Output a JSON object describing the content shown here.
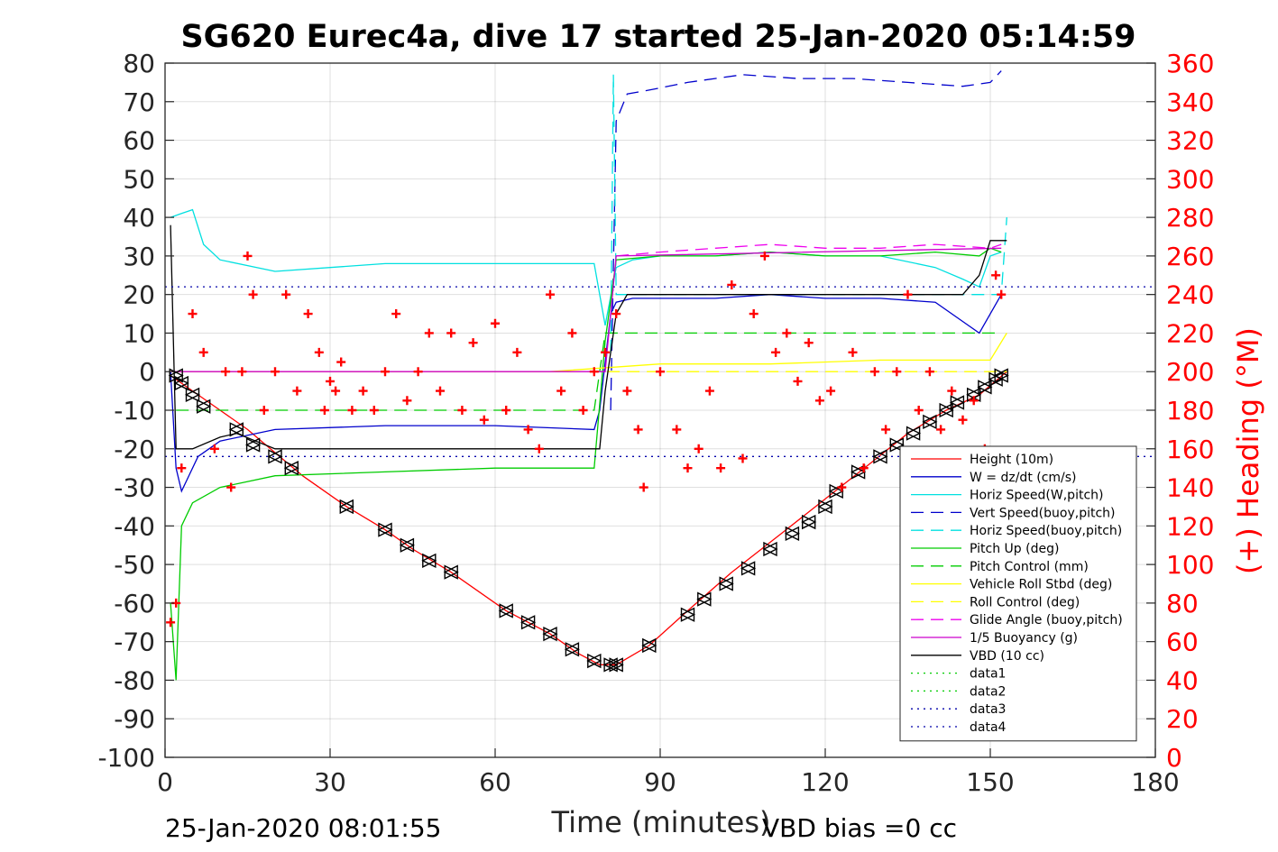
{
  "chart_data": {
    "type": "line",
    "title": "SG620 Eurec4a, dive 17 started 25-Jan-2020 05:14:59",
    "xlabel": "Time (minutes)",
    "ylabel": "",
    "ylabel_right": "(+) Heading (°M)",
    "xlim": [
      0,
      180
    ],
    "ylim": [
      -100,
      80
    ],
    "ylim_right": [
      0,
      360
    ],
    "xticks": [
      "0",
      "30",
      "60",
      "90",
      "120",
      "150",
      "180"
    ],
    "yticks": [
      "80",
      "70",
      "60",
      "50",
      "40",
      "30",
      "20",
      "10",
      "0",
      "-10",
      "-20",
      "-30",
      "-40",
      "-50",
      "-60",
      "-70",
      "-80",
      "-90",
      "-100"
    ],
    "yticks_right": [
      "360",
      "340",
      "320",
      "300",
      "280",
      "260",
      "240",
      "220",
      "200",
      "180",
      "160",
      "140",
      "120",
      "100",
      "80",
      "60",
      "40",
      "20",
      "0"
    ],
    "footer_left": "25-Jan-2020 08:01:55",
    "footer_right": "VBD bias =0 cc",
    "grid": true,
    "legend_position": "lower-right",
    "series": [
      {
        "name": "Height (10m)",
        "color": "#ff0000",
        "dash": "solid",
        "x": [
          1,
          3,
          6,
          10,
          15,
          20,
          25,
          33,
          40,
          45,
          52,
          62,
          70,
          75,
          79,
          82,
          88,
          95,
          103,
          112,
          120,
          128,
          135,
          142,
          148,
          153
        ],
        "y": [
          -1,
          -3,
          -6,
          -10,
          -15,
          -21,
          -27,
          -35,
          -41,
          -46,
          -52,
          -62,
          -68,
          -73,
          -76,
          -76,
          -71,
          -62,
          -52,
          -42,
          -33,
          -24,
          -16,
          -10,
          -6,
          0
        ]
      },
      {
        "name": "W = dz/dt (cm/s)",
        "color": "#0000cc",
        "dash": "solid",
        "x": [
          1,
          2,
          3,
          4,
          6,
          10,
          20,
          40,
          60,
          78,
          79,
          81,
          82,
          85,
          90,
          100,
          110,
          120,
          130,
          140,
          146,
          148,
          150,
          152
        ],
        "y": [
          0,
          -25,
          -31,
          -28,
          -22,
          -18,
          -15,
          -14,
          -14,
          -15,
          -10,
          15,
          18,
          19,
          19,
          19,
          20,
          19,
          19,
          18,
          12,
          10,
          15,
          20
        ]
      },
      {
        "name": "Horiz Speed(W,pitch)",
        "color": "#00e0e0",
        "dash": "solid",
        "x": [
          1,
          3,
          5,
          7,
          10,
          20,
          40,
          60,
          78,
          80,
          82,
          85,
          90,
          100,
          110,
          120,
          130,
          140,
          145,
          148,
          150,
          152
        ],
        "y": [
          40,
          41,
          42,
          33,
          29,
          26,
          28,
          28,
          28,
          12,
          27,
          29,
          30,
          30,
          31,
          30,
          30,
          27,
          24,
          22,
          30,
          31
        ]
      },
      {
        "name": "Vert Speed(buoy,pitch)",
        "color": "#0000cc",
        "dash": "dashed",
        "x": [
          81,
          82,
          84,
          88,
          95,
          105,
          115,
          125,
          135,
          145,
          150,
          152
        ],
        "y": [
          -10,
          65,
          72,
          73,
          75,
          77,
          76,
          76,
          75,
          74,
          75,
          78
        ]
      },
      {
        "name": "Horiz Speed(buoy,pitch)",
        "color": "#00e0e0",
        "dash": "dashed",
        "x": [
          81,
          81.5,
          82,
          152,
          153
        ],
        "y": [
          5,
          77,
          20,
          20,
          40
        ]
      },
      {
        "name": "Pitch Up (deg)",
        "color": "#00cc00",
        "dash": "solid",
        "x": [
          1,
          2,
          3,
          5,
          10,
          20,
          40,
          60,
          78,
          80,
          82,
          90,
          100,
          110,
          120,
          130,
          140,
          148,
          150,
          152
        ],
        "y": [
          -60,
          -80,
          -40,
          -34,
          -30,
          -27,
          -26,
          -25,
          -25,
          8,
          29,
          30,
          30,
          31,
          30,
          30,
          31,
          30,
          32,
          31
        ]
      },
      {
        "name": "Pitch Control (mm)",
        "color": "#00cc00",
        "dash": "dashed",
        "x": [
          2,
          78,
          80,
          152
        ],
        "y": [
          -10,
          -10,
          10,
          10
        ]
      },
      {
        "name": "Vehicle Roll Stbd (deg)",
        "color": "#ffff00",
        "dash": "solid",
        "x": [
          1,
          10,
          30,
          50,
          70,
          90,
          110,
          130,
          150,
          153
        ],
        "y": [
          0,
          0,
          0,
          0,
          0,
          2,
          2,
          3,
          3,
          10
        ]
      },
      {
        "name": "Roll Control (deg)",
        "color": "#ffff00",
        "dash": "dashed",
        "x": [
          1,
          153
        ],
        "y": [
          0,
          0
        ]
      },
      {
        "name": "Glide Angle (buoy,pitch)",
        "color": "#ee00ee",
        "dash": "dashed",
        "x": [
          82,
          90,
          100,
          110,
          120,
          130,
          140,
          150,
          152
        ],
        "y": [
          30,
          31,
          32,
          33,
          32,
          32,
          33,
          32,
          33
        ]
      },
      {
        "name": "1/5 Buoyancy (g)",
        "color": "#cc00cc",
        "dash": "solid",
        "x": [
          1,
          80,
          82,
          152
        ],
        "y": [
          0,
          0,
          30,
          32
        ]
      },
      {
        "name": "VBD (10 cc)",
        "color": "#000000",
        "dash": "solid",
        "x": [
          1,
          2,
          5,
          10,
          13,
          20,
          79,
          80,
          82,
          84,
          145,
          148,
          150,
          153
        ],
        "y": [
          38,
          -20,
          -20,
          -17,
          -16,
          -20,
          -20,
          -5,
          15,
          20,
          20,
          25,
          34,
          34
        ]
      },
      {
        "name": "data1",
        "color": "#00cc00",
        "dash": "dotted",
        "x": [],
        "y": []
      },
      {
        "name": "data2",
        "color": "#00cc00",
        "dash": "dotted",
        "x": [],
        "y": []
      },
      {
        "name": "data3",
        "color": "#0000aa",
        "dash": "dotted",
        "x": [
          0,
          180
        ],
        "y": [
          -22,
          -22
        ]
      },
      {
        "name": "data4",
        "color": "#0000aa",
        "dash": "dotted",
        "x": [
          0,
          180
        ],
        "y": [
          22,
          22
        ]
      }
    ],
    "heading_series": {
      "color": "#ff0000",
      "marker": "+",
      "axis": "right",
      "x": [
        1,
        2,
        3,
        5,
        7,
        9,
        11,
        12,
        14,
        15,
        16,
        18,
        20,
        22,
        24,
        26,
        28,
        29,
        30,
        31,
        32,
        34,
        36,
        38,
        40,
        42,
        44,
        46,
        48,
        50,
        52,
        54,
        56,
        58,
        60,
        62,
        64,
        66,
        68,
        70,
        72,
        74,
        76,
        78,
        80,
        82,
        84,
        86,
        87,
        90,
        93,
        95,
        97,
        99,
        101,
        103,
        105,
        107,
        109,
        111,
        113,
        115,
        117,
        119,
        121,
        123,
        125,
        127,
        129,
        131,
        133,
        135,
        137,
        139,
        141,
        143,
        145,
        147,
        149,
        151,
        152
      ],
      "y": [
        70,
        80,
        150,
        230,
        210,
        160,
        200,
        140,
        200,
        260,
        240,
        180,
        200,
        240,
        190,
        230,
        210,
        180,
        195,
        190,
        205,
        180,
        190,
        180,
        200,
        230,
        185,
        200,
        220,
        190,
        220,
        180,
        215,
        175,
        225,
        180,
        210,
        170,
        160,
        240,
        190,
        220,
        180,
        200,
        210,
        230,
        190,
        170,
        140,
        200,
        170,
        150,
        160,
        190,
        150,
        245,
        155,
        230,
        260,
        210,
        220,
        195,
        215,
        185,
        190,
        140,
        210,
        150,
        200,
        170,
        200,
        240,
        180,
        200,
        170,
        190,
        175,
        185,
        160,
        250,
        240
      ]
    },
    "vbd_markers": {
      "x": [
        2,
        3,
        5,
        7,
        13,
        16,
        20,
        23,
        33,
        40,
        44,
        48,
        52,
        62,
        66,
        70,
        74,
        78,
        81,
        82,
        88,
        95,
        98,
        102,
        106,
        110,
        114,
        117,
        120,
        122,
        126,
        130,
        133,
        136,
        139,
        142,
        144,
        147,
        149,
        151,
        152
      ],
      "y": [
        -1,
        -3,
        -6,
        -9,
        -15,
        -19,
        -22,
        -25,
        -35,
        -41,
        -45,
        -49,
        -52,
        -62,
        -65,
        -68,
        -72,
        -75,
        -76,
        -76,
        -71,
        -63,
        -59,
        -55,
        -51,
        -46,
        -42,
        -39,
        -35,
        -31,
        -26,
        -22,
        -19,
        -16,
        -13,
        -10,
        -8,
        -6,
        -4,
        -2,
        -1
      ]
    }
  }
}
